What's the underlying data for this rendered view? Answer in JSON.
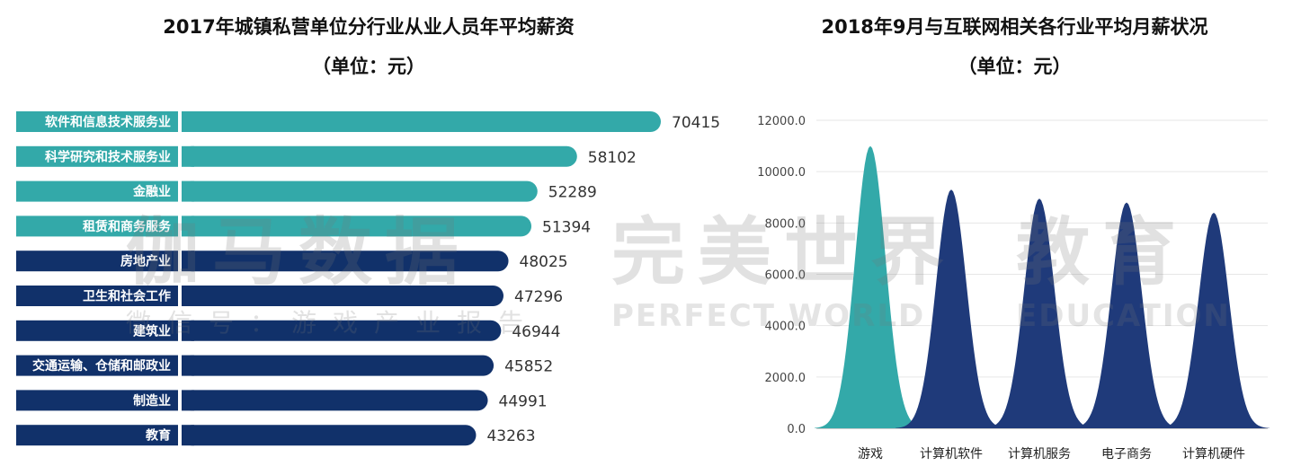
{
  "left": {
    "title_line1": "2017年城镇私营单位分行业从业人员年平均薪资",
    "title_line2": "（单位：元）"
  },
  "right": {
    "title_line1": "2018年9月与互联网相关各行业平均月薪状况",
    "title_line2": "（单位：元）"
  },
  "watermark": {
    "cn_left": "伽马数据",
    "cn_sub": "微信号：游戏产业报告",
    "cn_right_1": "完美世界",
    "cn_right_2": "教育",
    "en_right_1": "PERFECT WORLD",
    "en_right_2": "EDUCATION"
  },
  "chart_data": [
    {
      "type": "bar",
      "orientation": "horizontal",
      "title": "2017年城镇私营单位分行业从业人员年平均薪资",
      "subtitle": "（单位：元）",
      "categories": [
        "软件和信息技术服务业",
        "科学研究和技术服务业",
        "金融业",
        "租赁和商务服务",
        "房地产业",
        "卫生和社会工作",
        "建筑业",
        "交通运输、仓储和邮政业",
        "制造业",
        "教育"
      ],
      "values": [
        70415,
        58102,
        52289,
        51394,
        48025,
        47296,
        46944,
        45852,
        44991,
        43263
      ],
      "colors": [
        "#33a9a9",
        "#33a9a9",
        "#33a9a9",
        "#33a9a9",
        "#11316a",
        "#11316a",
        "#11316a",
        "#11316a",
        "#11316a",
        "#11316a"
      ],
      "data_labels": true
    },
    {
      "type": "area",
      "title": "2018年9月与互联网相关各行业平均月薪状况",
      "subtitle": "（单位：元）",
      "categories": [
        "游戏",
        "计算机软件",
        "计算机服务",
        "电子商务",
        "计算机硬件"
      ],
      "values": [
        11000,
        9300,
        8950,
        8800,
        8400
      ],
      "colors": [
        "#33a9a9",
        "#1f3a7a",
        "#1f3a7a",
        "#1f3a7a",
        "#1f3a7a"
      ],
      "ylim": [
        0,
        12000
      ],
      "yticks": [
        "0.0",
        "2000.0",
        "4000.0",
        "6000.0",
        "8000.0",
        "10000.0",
        "12000.0"
      ],
      "grid": true
    }
  ]
}
